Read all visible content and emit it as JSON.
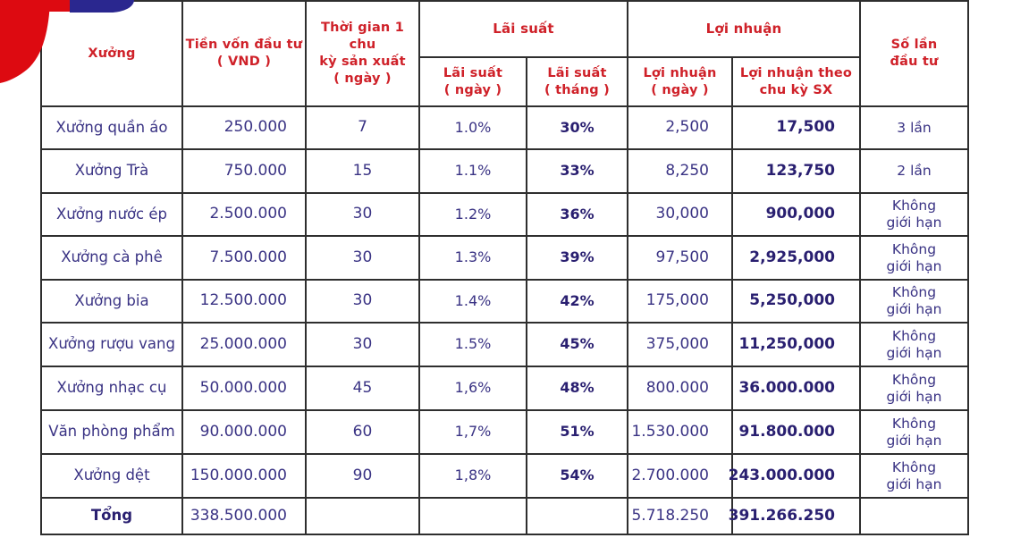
{
  "colors": {
    "header_text": "#cf2129",
    "value_text": "#3a3384",
    "value_text_bold": "#291f70",
    "border": "#2e2e2e",
    "logo_red": "#dd0a11",
    "logo_blue": "#2a278f",
    "background": "#ffffff"
  },
  "logo": {
    "red_shape": "red-circle-fragment",
    "blue_shape": "blue-rounded-fragment"
  },
  "table": {
    "headers": {
      "workshop": "Xưởng",
      "capital": "Tiền vốn đầu tư\n( VND )",
      "cycle_time": "Thời gian 1 chu\nkỳ sản xuất\n( ngày )",
      "interest_group": "Lãi suất",
      "interest_day": "Lãi suất\n( ngày )",
      "interest_month": "Lãi suất\n( tháng )",
      "profit_group": "Lợi nhuận",
      "profit_day": "Lợi nhuận\n( ngày )",
      "profit_cycle": "Lợi nhuận theo\nchu kỳ SX",
      "investment_count": "Số lần\nđầu tư"
    },
    "rows": [
      {
        "workshop": "Xưởng quần áo",
        "capital": "250.000",
        "cycle_days": "7",
        "interest_day": "1.0%",
        "interest_month": "30%",
        "profit_day": "2,500",
        "profit_cycle": "17,500",
        "investment_count": "3 lần"
      },
      {
        "workshop": "Xưởng Trà",
        "capital": "750.000",
        "cycle_days": "15",
        "interest_day": "1.1%",
        "interest_month": "33%",
        "profit_day": "8,250",
        "profit_cycle": "123,750",
        "investment_count": "2 lần"
      },
      {
        "workshop": "Xưởng nước ép",
        "capital": "2.500.000",
        "cycle_days": "30",
        "interest_day": "1.2%",
        "interest_month": "36%",
        "profit_day": "30,000",
        "profit_cycle": "900,000",
        "investment_count": "Không\ngiới hạn"
      },
      {
        "workshop": "Xưởng cà phê",
        "capital": "7.500.000",
        "cycle_days": "30",
        "interest_day": "1.3%",
        "interest_month": "39%",
        "profit_day": "97,500",
        "profit_cycle": "2,925,000",
        "investment_count": "Không\ngiới hạn"
      },
      {
        "workshop": "Xưởng bia",
        "capital": "12.500.000",
        "cycle_days": "30",
        "interest_day": "1.4%",
        "interest_month": "42%",
        "profit_day": "175,000",
        "profit_cycle": "5,250,000",
        "investment_count": "Không\ngiới hạn"
      },
      {
        "workshop": "Xưởng rượu vang",
        "capital": "25.000.000",
        "cycle_days": "30",
        "interest_day": "1.5%",
        "interest_month": "45%",
        "profit_day": "375,000",
        "profit_cycle": "11,250,000",
        "investment_count": "Không\ngiới hạn"
      },
      {
        "workshop": "Xưởng nhạc cụ",
        "capital": "50.000.000",
        "cycle_days": "45",
        "interest_day": "1,6%",
        "interest_month": "48%",
        "profit_day": "800.000",
        "profit_cycle": "36.000.000",
        "investment_count": "Không\ngiới hạn"
      },
      {
        "workshop": "Văn phòng phẩm",
        "capital": "90.000.000",
        "cycle_days": "60",
        "interest_day": "1,7%",
        "interest_month": "51%",
        "profit_day": "1.530.000",
        "profit_cycle": "91.800.000",
        "investment_count": "Không\ngiới hạn"
      },
      {
        "workshop": "Xưởng dệt",
        "capital": "150.000.000",
        "cycle_days": "90",
        "interest_day": "1,8%",
        "interest_month": "54%",
        "profit_day": "2.700.000",
        "profit_cycle": "243.000.000",
        "investment_count": "Không\ngiới hạn"
      }
    ],
    "total_row": {
      "workshop": "Tổng",
      "capital": "338.500.000",
      "cycle_days": "",
      "interest_day": "",
      "interest_month": "",
      "profit_day": "5.718.250",
      "profit_cycle": "391.266.250",
      "investment_count": ""
    }
  }
}
